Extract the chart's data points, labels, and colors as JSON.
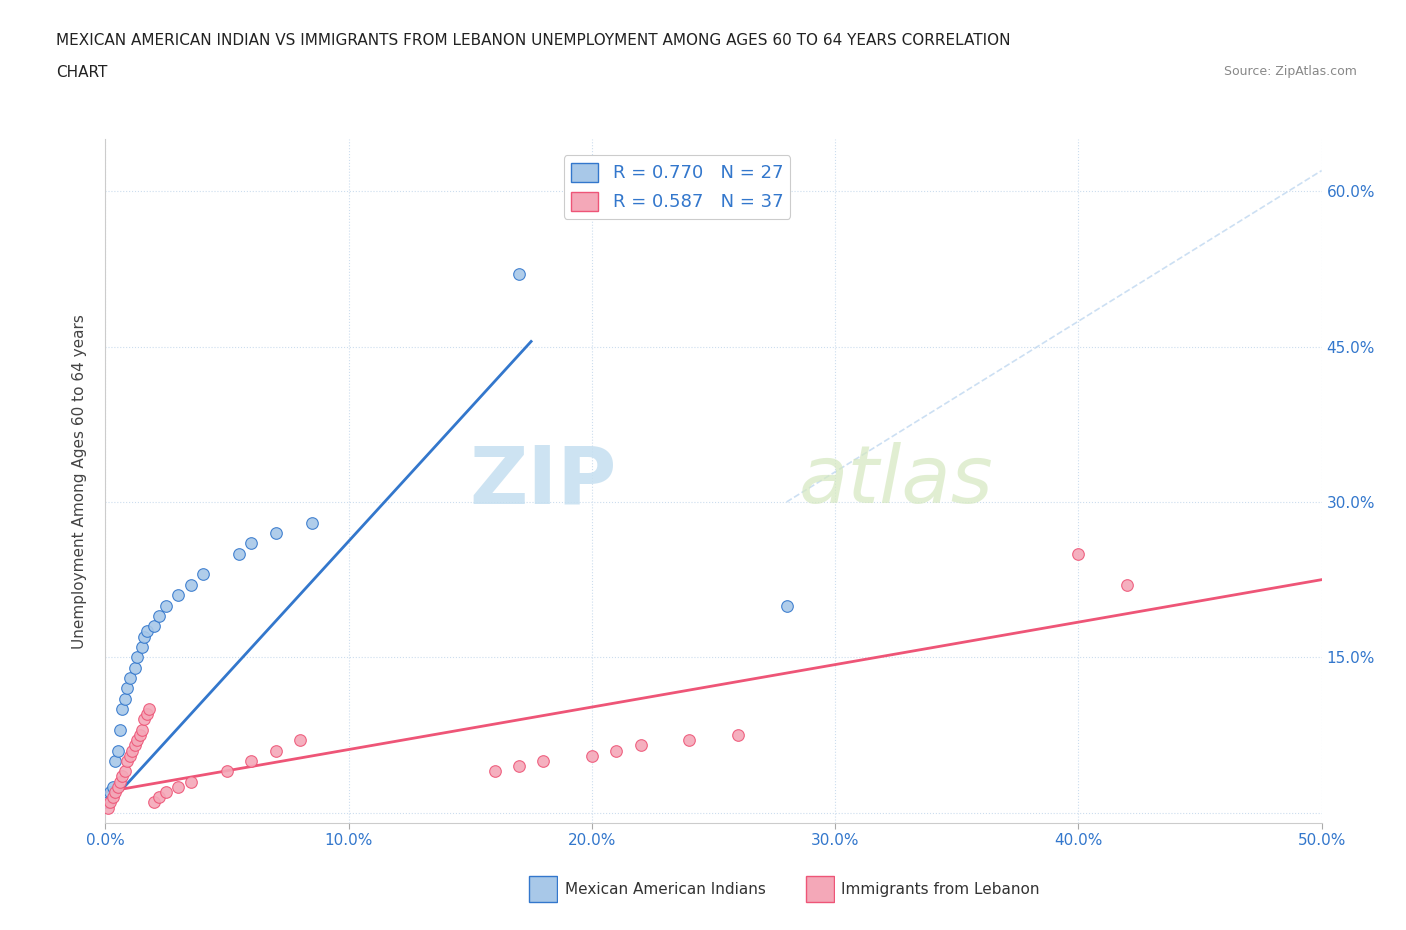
{
  "title_line1": "MEXICAN AMERICAN INDIAN VS IMMIGRANTS FROM LEBANON UNEMPLOYMENT AMONG AGES 60 TO 64 YEARS CORRELATION",
  "title_line2": "CHART",
  "source": "Source: ZipAtlas.com",
  "ylabel": "Unemployment Among Ages 60 to 64 years",
  "xmin": 0.0,
  "xmax": 0.5,
  "ymin": -0.01,
  "ymax": 0.65,
  "xticks": [
    0.0,
    0.1,
    0.2,
    0.3,
    0.4,
    0.5
  ],
  "xtick_labels": [
    "0.0%",
    "10.0%",
    "20.0%",
    "30.0%",
    "40.0%",
    "50.0%"
  ],
  "yticks": [
    0.0,
    0.15,
    0.3,
    0.45,
    0.6
  ],
  "ytick_labels_right": [
    "",
    "15.0%",
    "30.0%",
    "45.0%",
    "60.0%"
  ],
  "color_blue": "#a8c8e8",
  "color_pink": "#f4a8b8",
  "line_blue": "#3377cc",
  "line_pink": "#ee5577",
  "dashed_line_color": "#c0d8f0",
  "legend_R1": "R = 0.770",
  "legend_N1": "N = 27",
  "legend_R2": "R = 0.587",
  "legend_N2": "N = 37",
  "watermark_ZIP": "ZIP",
  "watermark_atlas": "atlas",
  "blue_scatter_x": [
    0.001,
    0.002,
    0.003,
    0.004,
    0.005,
    0.006,
    0.007,
    0.008,
    0.009,
    0.01,
    0.012,
    0.013,
    0.015,
    0.016,
    0.017,
    0.02,
    0.022,
    0.025,
    0.03,
    0.035,
    0.04,
    0.055,
    0.06,
    0.07,
    0.085,
    0.17,
    0.28
  ],
  "blue_scatter_y": [
    0.01,
    0.02,
    0.025,
    0.05,
    0.06,
    0.08,
    0.1,
    0.11,
    0.12,
    0.13,
    0.14,
    0.15,
    0.16,
    0.17,
    0.175,
    0.18,
    0.19,
    0.2,
    0.21,
    0.22,
    0.23,
    0.25,
    0.26,
    0.27,
    0.28,
    0.52,
    0.2
  ],
  "pink_scatter_x": [
    0.001,
    0.002,
    0.003,
    0.004,
    0.005,
    0.006,
    0.007,
    0.008,
    0.009,
    0.01,
    0.011,
    0.012,
    0.013,
    0.014,
    0.015,
    0.016,
    0.017,
    0.018,
    0.02,
    0.022,
    0.025,
    0.03,
    0.035,
    0.05,
    0.06,
    0.07,
    0.08,
    0.16,
    0.17,
    0.18,
    0.2,
    0.21,
    0.22,
    0.24,
    0.26,
    0.4,
    0.42
  ],
  "pink_scatter_y": [
    0.005,
    0.01,
    0.015,
    0.02,
    0.025,
    0.03,
    0.035,
    0.04,
    0.05,
    0.055,
    0.06,
    0.065,
    0.07,
    0.075,
    0.08,
    0.09,
    0.095,
    0.1,
    0.01,
    0.015,
    0.02,
    0.025,
    0.03,
    0.04,
    0.05,
    0.06,
    0.07,
    0.04,
    0.045,
    0.05,
    0.055,
    0.06,
    0.065,
    0.07,
    0.075,
    0.25,
    0.22
  ],
  "blue_regline_x": [
    0.0,
    0.175
  ],
  "blue_regline_y": [
    0.005,
    0.455
  ],
  "pink_regline_x": [
    0.0,
    0.5
  ],
  "pink_regline_y": [
    0.02,
    0.225
  ],
  "dashed_line_x": [
    0.28,
    0.5
  ],
  "dashed_line_y": [
    0.3,
    0.62
  ]
}
